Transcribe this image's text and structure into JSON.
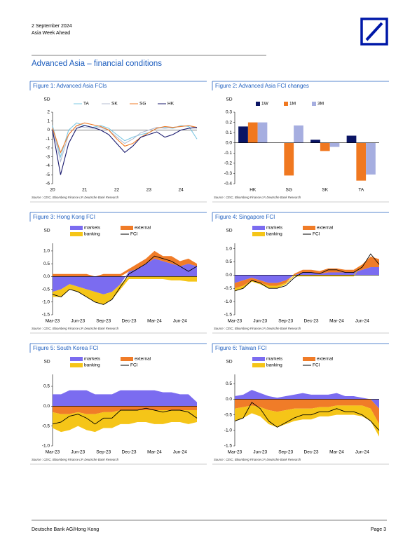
{
  "header": {
    "date": "2 September 2024",
    "publication": "Asia Week Ahead"
  },
  "section_title": "Advanced Asia – financial conditions",
  "chart_data": [
    {
      "type": "line",
      "title": "Figure 1: Advanced Asia FCIs",
      "y_label": "SD",
      "source": "Source : CEIC, Bloomberg Finance LP, Deutsche Bank Research",
      "categories": [
        "20",
        null,
        null,
        null,
        "21",
        null,
        null,
        null,
        "22",
        null,
        null,
        null,
        "23",
        null,
        null,
        null,
        "24",
        null,
        null
      ],
      "series": [
        {
          "name": "TA",
          "color": "#7ec8e3",
          "values": [
            0.5,
            -3,
            0,
            0.8,
            0.5,
            0.3,
            0.5,
            0.2,
            -0.5,
            -1.2,
            -0.8,
            -0.5,
            -0.3,
            0.2,
            0.3,
            0.2,
            0.5,
            0.4,
            -1
          ]
        },
        {
          "name": "SK",
          "color": "#b4bcd2",
          "values": [
            0.3,
            -3.5,
            -0.5,
            0.5,
            0.3,
            0.2,
            0.3,
            0,
            -0.8,
            -1.5,
            -1,
            -0.3,
            0,
            0.3,
            0.2,
            0.3,
            0.4,
            0.5,
            0.2
          ]
        },
        {
          "name": "SG",
          "color": "#f07c28",
          "values": [
            0.2,
            -2.5,
            -0.5,
            0.5,
            0.8,
            0.6,
            0.4,
            0,
            -1,
            -1.8,
            -1.5,
            -0.8,
            -0.3,
            0.2,
            0.4,
            0.3,
            0.4,
            0.5,
            0.3
          ]
        },
        {
          "name": "HK",
          "color": "#1a1a6e",
          "values": [
            0,
            -5,
            -1.5,
            0.2,
            0.5,
            0.3,
            0,
            -0.5,
            -1.5,
            -2.5,
            -1.8,
            -0.8,
            -0.5,
            -0.2,
            -0.8,
            -0.5,
            0,
            0.2,
            0.3
          ]
        }
      ],
      "ylim": [
        -6,
        2
      ],
      "yticks": [
        -6,
        -5,
        -4,
        -3,
        -2,
        -1,
        0,
        1,
        2
      ],
      "legend": "top"
    },
    {
      "type": "bar",
      "title": "Figure 2: Advanced Asia FCI changes",
      "y_label": "SD",
      "source": "Source : CEIC, Bloomberg Finance LP, Deutsche Bank Research",
      "categories": [
        "HK",
        "SG",
        "SK",
        "TA"
      ],
      "series": [
        {
          "name": "1W",
          "color": "#0a1464",
          "values": [
            0.16,
            0,
            0.03,
            0.07
          ]
        },
        {
          "name": "1M",
          "color": "#f07820",
          "values": [
            0.2,
            -0.32,
            -0.08,
            -0.37
          ]
        },
        {
          "name": "3M",
          "color": "#a6aee0",
          "values": [
            0.2,
            0.17,
            -0.04,
            -0.31
          ]
        }
      ],
      "ylim": [
        -0.4,
        0.3
      ],
      "yticks": [
        -0.4,
        -0.3,
        -0.2,
        -0.1,
        {
          "value": 0,
          "label": "0.0"
        },
        0.1,
        0.2,
        0.3
      ],
      "legend": "top"
    },
    {
      "type": "area",
      "title": "Figure 3: Hong Kong FCI",
      "y_label": "SD",
      "source": "Source : CEIC, Bloomberg Finance LP, Deutsche Bank Research",
      "categories": [
        "Mar-23",
        null,
        null,
        "Jun-23",
        null,
        null,
        "Sep-23",
        null,
        null,
        "Dec-23",
        null,
        null,
        "Mar-24",
        null,
        null,
        "Jun-24",
        null,
        null
      ],
      "series": [
        {
          "name": "markets",
          "color": "#7b6cf0",
          "values": [
            -0.6,
            -0.5,
            -0.3,
            -0.4,
            -0.5,
            -0.6,
            -0.7,
            -0.6,
            -0.3,
            0.2,
            0.3,
            0.5,
            0.7,
            0.6,
            0.5,
            0.4,
            0.5,
            0.4
          ]
        },
        {
          "name": "external",
          "color": "#f07c28",
          "values": [
            0.1,
            0.1,
            0.1,
            0.1,
            0.1,
            0,
            0.1,
            0.1,
            0.1,
            0.1,
            0.2,
            0.2,
            0.3,
            0.2,
            0.3,
            0.2,
            0.2,
            0.1
          ]
        },
        {
          "name": "banking",
          "color": "#f5c518",
          "values": [
            -0.2,
            -0.3,
            -0.2,
            -0.2,
            -0.3,
            -0.4,
            -0.4,
            -0.3,
            -0.2,
            -0.1,
            -0.1,
            -0.1,
            -0.1,
            -0.1,
            -0.15,
            -0.15,
            -0.2,
            -0.2
          ]
        },
        {
          "name": "FCI",
          "color": "#000000",
          "type": "line",
          "values": [
            -0.7,
            -0.8,
            -0.5,
            -0.6,
            -0.8,
            -1.0,
            -1.1,
            -0.9,
            -0.4,
            0.1,
            0.3,
            0.5,
            0.8,
            0.7,
            0.6,
            0.4,
            0.2,
            0.4
          ]
        }
      ],
      "ylim": [
        -1.5,
        1.3
      ],
      "yticks": [
        -1.5,
        {
          "value": -1,
          "label": "-1.0"
        },
        -0.5,
        {
          "value": 0,
          "label": "0.0"
        },
        0.5,
        {
          "value": 1,
          "label": "1.0"
        }
      ],
      "legend": "top"
    },
    {
      "type": "area",
      "title": "Figure 4: Singapore FCI",
      "y_label": "SD",
      "source": "Source : CEIC, Bloomberg Finance LP, Deutsche Bank Research",
      "categories": [
        "Mar-23",
        null,
        null,
        "Jun-23",
        null,
        null,
        "Sep-23",
        null,
        null,
        "Dec-23",
        null,
        null,
        "Mar-24",
        null,
        null,
        "Jun-24",
        null,
        null
      ],
      "series": [
        {
          "name": "markets",
          "color": "#7b6cf0",
          "values": [
            -0.3,
            -0.2,
            -0.1,
            -0.2,
            -0.3,
            -0.3,
            -0.2,
            0,
            0.1,
            0.1,
            0.05,
            0.1,
            0.1,
            0.1,
            0.1,
            0.2,
            0.3,
            0.3
          ]
        },
        {
          "name": "external",
          "color": "#f07c28",
          "values": [
            -0.2,
            -0.2,
            -0.1,
            -0.1,
            -0.1,
            -0.1,
            -0.1,
            0.05,
            0.1,
            0.1,
            0.1,
            0.15,
            0.15,
            0.1,
            0.1,
            0.2,
            0.4,
            0.3
          ]
        },
        {
          "name": "banking",
          "color": "#f5c518",
          "values": [
            -0.1,
            -0.1,
            -0.05,
            -0.05,
            -0.1,
            -0.1,
            -0.05,
            -0.05,
            -0.05,
            -0.05,
            -0.05,
            -0.05,
            -0.05,
            -0.05,
            -0.05,
            0,
            0,
            0
          ]
        },
        {
          "name": "FCI",
          "color": "#000000",
          "type": "line",
          "values": [
            -0.6,
            -0.5,
            -0.2,
            -0.3,
            -0.5,
            -0.5,
            -0.4,
            -0.1,
            0.1,
            0.1,
            0.05,
            0.2,
            0.2,
            0.1,
            0.1,
            0.3,
            0.8,
            0.4
          ]
        }
      ],
      "ylim": [
        -1.5,
        1.2
      ],
      "yticks": [
        -1.5,
        {
          "value": -1,
          "label": "-1.0"
        },
        -0.5,
        {
          "value": 0,
          "label": "0.0"
        },
        0.5,
        {
          "value": 1,
          "label": "1.0"
        }
      ],
      "legend": "top"
    },
    {
      "type": "area",
      "title": "Figure 5: South Korea FCI",
      "y_label": "SD",
      "source": "Source : CEIC, Bloomberg Finance LP, Deutsche Bank Research",
      "categories": [
        "Mar-23",
        null,
        null,
        "Jun-23",
        null,
        null,
        "Sep-23",
        null,
        null,
        "Dec-23",
        null,
        null,
        "Mar-24",
        null,
        null,
        "Jun-24",
        null,
        null
      ],
      "series": [
        {
          "name": "markets",
          "color": "#7b6cf0",
          "values": [
            0.3,
            0.3,
            0.4,
            0.4,
            0.4,
            0.3,
            0.3,
            0.3,
            0.4,
            0.4,
            0.4,
            0.4,
            0.4,
            0.35,
            0.35,
            0.3,
            0.3,
            0.1
          ]
        },
        {
          "name": "external",
          "color": "#f07c28",
          "values": [
            -0.15,
            -0.2,
            -0.2,
            -0.15,
            -0.2,
            -0.2,
            -0.15,
            -0.15,
            -0.1,
            -0.1,
            -0.1,
            -0.1,
            -0.1,
            -0.1,
            -0.1,
            -0.1,
            -0.1,
            -0.1
          ]
        },
        {
          "name": "banking",
          "color": "#f5c518",
          "values": [
            -0.4,
            -0.45,
            -0.4,
            -0.35,
            -0.4,
            -0.45,
            -0.4,
            -0.4,
            -0.35,
            -0.35,
            -0.3,
            -0.3,
            -0.35,
            -0.35,
            -0.3,
            -0.3,
            -0.35,
            -0.3
          ]
        },
        {
          "name": "FCI",
          "color": "#000000",
          "type": "line",
          "values": [
            -0.45,
            -0.4,
            -0.25,
            -0.2,
            -0.3,
            -0.45,
            -0.3,
            -0.3,
            -0.1,
            -0.1,
            -0.1,
            -0.05,
            -0.1,
            -0.15,
            -0.1,
            -0.1,
            -0.15,
            -0.3
          ]
        }
      ],
      "ylim": [
        -1,
        0.8
      ],
      "yticks": [
        {
          "value": -1,
          "label": "-1.0"
        },
        -0.5,
        {
          "value": 0,
          "label": "0.0"
        },
        0.5
      ],
      "legend": "top"
    },
    {
      "type": "area",
      "title": "Figure 6: Taiwan FCI",
      "y_label": "SD",
      "source": "Source : CEIC, Bloomberg Finance LP, Deutsche Bank Research",
      "categories": [
        "Mar-23",
        null,
        null,
        "Jun-23",
        null,
        null,
        "Sep-23",
        null,
        null,
        "Dec-23",
        null,
        null,
        "Mar-24",
        null,
        null,
        "Jun-24",
        null,
        null
      ],
      "series": [
        {
          "name": "markets",
          "color": "#7b6cf0",
          "values": [
            0.1,
            0.15,
            0.3,
            0.2,
            0.1,
            0.05,
            0.1,
            0.15,
            0.2,
            0.15,
            0.15,
            0.15,
            0.2,
            0.1,
            0.1,
            0.05,
            0,
            -0.3
          ]
        },
        {
          "name": "external",
          "color": "#f07c28",
          "values": [
            -0.3,
            -0.25,
            -0.2,
            -0.25,
            -0.35,
            -0.4,
            -0.35,
            -0.3,
            -0.3,
            -0.3,
            -0.25,
            -0.25,
            -0.2,
            -0.2,
            -0.2,
            -0.2,
            -0.3,
            -0.5
          ]
        },
        {
          "name": "banking",
          "color": "#f5c518",
          "values": [
            -0.4,
            -0.35,
            -0.25,
            -0.3,
            -0.45,
            -0.5,
            -0.45,
            -0.4,
            -0.35,
            -0.35,
            -0.3,
            -0.3,
            -0.3,
            -0.3,
            -0.3,
            -0.35,
            -0.4,
            -0.4
          ]
        },
        {
          "name": "FCI",
          "color": "#000000",
          "type": "line",
          "values": [
            -0.7,
            -0.6,
            -0.1,
            -0.3,
            -0.7,
            -0.9,
            -0.75,
            -0.6,
            -0.5,
            -0.5,
            -0.4,
            -0.4,
            -0.3,
            -0.4,
            -0.4,
            -0.5,
            -0.7,
            -1.0
          ]
        }
      ],
      "ylim": [
        -1.5,
        0.8
      ],
      "yticks": [
        -1.5,
        {
          "value": -1,
          "label": "-1.0"
        },
        -0.5,
        {
          "value": 0,
          "label": "0.0"
        },
        0.5
      ],
      "legend": "top"
    }
  ],
  "footer": {
    "left": "Deutsche Bank AG/Hong Kong",
    "page": "Page 3"
  }
}
